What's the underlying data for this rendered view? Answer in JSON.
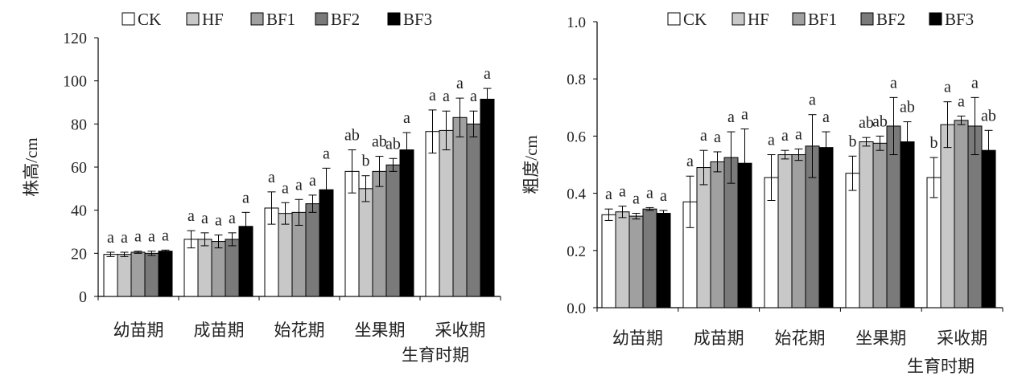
{
  "legend_items": [
    {
      "label": "CK",
      "color": "#ffffff"
    },
    {
      "label": "HF",
      "color": "#c8c8c8"
    },
    {
      "label": "BF1",
      "color": "#a0a0a0"
    },
    {
      "label": "BF2",
      "color": "#7a7a7a"
    },
    {
      "label": "BF3",
      "color": "#000000"
    }
  ],
  "chart_data": [
    {
      "type": "bar",
      "title": "",
      "xlabel": "生育时期",
      "ylabel": "株高/cm",
      "ylim": [
        0,
        120
      ],
      "yticks": [
        "0",
        "20",
        "40",
        "60",
        "80",
        "100",
        "120"
      ],
      "grid": false,
      "legend_position": "top",
      "categories": [
        "幼苗期",
        "成苗期",
        "始花期",
        "坐果期",
        "采收期"
      ],
      "series": [
        {
          "name": "CK",
          "values": [
            19.5,
            26.5,
            41.0,
            58.0,
            76.5
          ],
          "errors": [
            1.0,
            4.0,
            7.5,
            10.0,
            10.0
          ],
          "letters": [
            "a",
            "a",
            "a",
            "ab",
            "a"
          ]
        },
        {
          "name": "HF",
          "values": [
            19.5,
            26.5,
            38.5,
            50.0,
            77.0
          ],
          "errors": [
            1.0,
            3.0,
            5.0,
            6.0,
            9.0
          ],
          "letters": [
            "a",
            "a",
            "a",
            "b",
            "a"
          ]
        },
        {
          "name": "BF1",
          "values": [
            20.5,
            25.5,
            39.0,
            58.0,
            83.0
          ],
          "errors": [
            0.5,
            3.0,
            6.0,
            7.0,
            9.0
          ],
          "letters": [
            "a",
            "a",
            "a",
            "ab",
            "a"
          ]
        },
        {
          "name": "BF2",
          "values": [
            20.0,
            26.5,
            43.0,
            61.0,
            80.0
          ],
          "errors": [
            1.0,
            3.0,
            4.0,
            3.0,
            6.0
          ],
          "letters": [
            "a",
            "a",
            "a",
            "ab",
            "a"
          ]
        },
        {
          "name": "BF3",
          "values": [
            21.0,
            32.5,
            49.5,
            68.0,
            91.5
          ],
          "errors": [
            0.5,
            6.5,
            10.0,
            8.0,
            5.0
          ],
          "letters": [
            "a",
            "a",
            "a",
            "a",
            "a"
          ]
        }
      ]
    },
    {
      "type": "bar",
      "title": "",
      "xlabel": "生育时期",
      "ylabel": "粗度/cm",
      "ylim": [
        0,
        1.0
      ],
      "yticks": [
        "0.0",
        "0.2",
        "0.4",
        "0.6",
        "0.8",
        "1.0"
      ],
      "grid": false,
      "legend_position": "top",
      "categories": [
        "幼苗期",
        "成苗期",
        "始花期",
        "坐果期",
        "采收期"
      ],
      "series": [
        {
          "name": "CK",
          "values": [
            0.325,
            0.37,
            0.455,
            0.47,
            0.455
          ],
          "errors": [
            0.02,
            0.09,
            0.08,
            0.06,
            0.07
          ],
          "letters": [
            "a",
            "a",
            "a",
            "b",
            "b"
          ]
        },
        {
          "name": "HF",
          "values": [
            0.335,
            0.49,
            0.535,
            0.58,
            0.64
          ],
          "errors": [
            0.02,
            0.06,
            0.015,
            0.015,
            0.08
          ],
          "letters": [
            "a",
            "a",
            "a",
            "ab",
            "a"
          ]
        },
        {
          "name": "BF1",
          "values": [
            0.32,
            0.51,
            0.535,
            0.575,
            0.655
          ],
          "errors": [
            0.01,
            0.035,
            0.02,
            0.025,
            0.015
          ],
          "letters": [
            "a",
            "a",
            "a",
            "ab",
            "a"
          ]
        },
        {
          "name": "BF2",
          "values": [
            0.345,
            0.525,
            0.565,
            0.635,
            0.635
          ],
          "errors": [
            0.005,
            0.09,
            0.11,
            0.1,
            0.1
          ],
          "letters": [
            "a",
            "a",
            "a",
            "a",
            "a"
          ]
        },
        {
          "name": "BF3",
          "values": [
            0.33,
            0.505,
            0.56,
            0.58,
            0.55
          ],
          "errors": [
            0.01,
            0.12,
            0.055,
            0.07,
            0.07
          ],
          "letters": [
            "a",
            "a",
            "a",
            "ab",
            "ab"
          ]
        }
      ]
    }
  ]
}
